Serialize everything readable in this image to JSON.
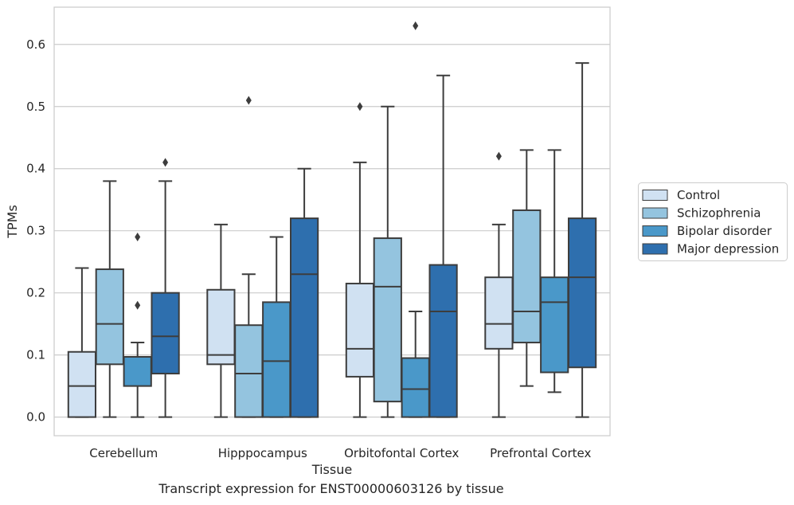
{
  "chart_data": {
    "type": "box",
    "xlabel": "Tissue",
    "ylabel": "TPMs",
    "ylim": [
      -0.03,
      0.66
    ],
    "yticks": [
      0.0,
      0.1,
      0.2,
      0.3,
      0.4,
      0.5,
      0.6
    ],
    "ytick_labels": [
      "0.0",
      "0.1",
      "0.2",
      "0.3",
      "0.4",
      "0.5",
      "0.6"
    ],
    "grid": "horizontal",
    "legend_position": "right, outside plot",
    "categories": [
      "Cerebellum",
      "Hipppocampus",
      "Orbitofontal Cortex",
      "Prefrontal Cortex"
    ],
    "series": [
      {
        "name": "Control",
        "color": "#d0e1f2",
        "boxes": [
          {
            "whisker_low": 0.0,
            "q1": 0.0,
            "median": 0.05,
            "q3": 0.105,
            "whisker_high": 0.24,
            "outliers": []
          },
          {
            "whisker_low": 0.0,
            "q1": 0.085,
            "median": 0.1,
            "q3": 0.205,
            "whisker_high": 0.31,
            "outliers": []
          },
          {
            "whisker_low": 0.0,
            "q1": 0.065,
            "median": 0.11,
            "q3": 0.215,
            "whisker_high": 0.41,
            "outliers": [
              0.5
            ]
          },
          {
            "whisker_low": 0.0,
            "q1": 0.11,
            "median": 0.15,
            "q3": 0.225,
            "whisker_high": 0.31,
            "outliers": [
              0.42
            ]
          }
        ]
      },
      {
        "name": "Schizophrenia",
        "color": "#94c4df",
        "boxes": [
          {
            "whisker_low": 0.0,
            "q1": 0.085,
            "median": 0.15,
            "q3": 0.238,
            "whisker_high": 0.38,
            "outliers": []
          },
          {
            "whisker_low": 0.0,
            "q1": 0.0,
            "median": 0.07,
            "q3": 0.148,
            "whisker_high": 0.23,
            "outliers": [
              0.51
            ]
          },
          {
            "whisker_low": 0.0,
            "q1": 0.025,
            "median": 0.21,
            "q3": 0.288,
            "whisker_high": 0.5,
            "outliers": []
          },
          {
            "whisker_low": 0.05,
            "q1": 0.12,
            "median": 0.17,
            "q3": 0.333,
            "whisker_high": 0.43,
            "outliers": []
          }
        ]
      },
      {
        "name": "Bipolar disorder",
        "color": "#4a98c9",
        "boxes": [
          {
            "whisker_low": 0.0,
            "q1": 0.05,
            "median": 0.097,
            "q3": 0.097,
            "whisker_high": 0.12,
            "outliers": [
              0.18,
              0.29
            ]
          },
          {
            "whisker_low": 0.0,
            "q1": 0.0,
            "median": 0.09,
            "q3": 0.185,
            "whisker_high": 0.29,
            "outliers": []
          },
          {
            "whisker_low": 0.0,
            "q1": 0.0,
            "median": 0.045,
            "q3": 0.095,
            "whisker_high": 0.17,
            "outliers": [
              0.63
            ]
          },
          {
            "whisker_low": 0.04,
            "q1": 0.072,
            "median": 0.185,
            "q3": 0.225,
            "whisker_high": 0.43,
            "outliers": []
          }
        ]
      },
      {
        "name": "Major depression",
        "color": "#2e6fae",
        "boxes": [
          {
            "whisker_low": 0.0,
            "q1": 0.07,
            "median": 0.13,
            "q3": 0.2,
            "whisker_high": 0.38,
            "outliers": [
              0.41
            ]
          },
          {
            "whisker_low": 0.0,
            "q1": 0.0,
            "median": 0.23,
            "q3": 0.32,
            "whisker_high": 0.4,
            "outliers": []
          },
          {
            "whisker_low": 0.0,
            "q1": 0.0,
            "median": 0.17,
            "q3": 0.245,
            "whisker_high": 0.55,
            "outliers": []
          },
          {
            "whisker_low": 0.0,
            "q1": 0.08,
            "median": 0.225,
            "q3": 0.32,
            "whisker_high": 0.57,
            "outliers": []
          }
        ]
      }
    ]
  },
  "caption": "Transcript expression for ENST00000603126 by tissue"
}
